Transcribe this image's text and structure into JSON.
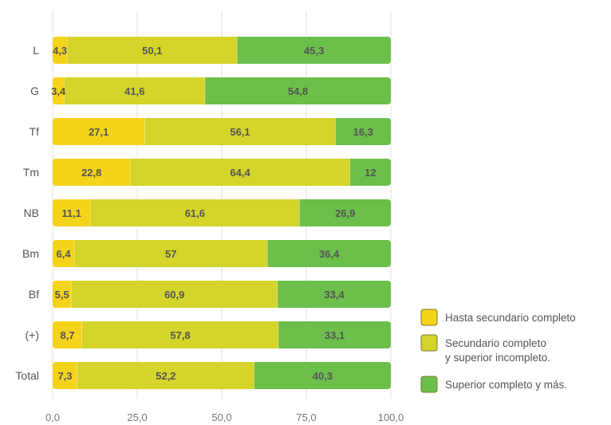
{
  "chart_data": {
    "type": "bar",
    "orientation": "horizontal",
    "stacked": true,
    "categories": [
      "L",
      "G",
      "Tf",
      "Tm",
      "NB",
      "Bm",
      "Bf",
      "(+)",
      "Total"
    ],
    "series": [
      {
        "name": "Hasta secundario completo",
        "color": "#f4d31b",
        "values": [
          4.3,
          3.4,
          27.1,
          22.8,
          11.1,
          6.4,
          5.5,
          8.7,
          7.3
        ],
        "labels": [
          "4,3",
          "3,4",
          "27,1",
          "22,8",
          "11,1",
          "6,4",
          "5,5",
          "8,7",
          "7,3"
        ]
      },
      {
        "name_lines": [
          "Secundario completo",
          "y superior incompleto."
        ],
        "color": "#d4d42a",
        "values": [
          50.1,
          41.6,
          56.1,
          64.4,
          61.6,
          57,
          60.9,
          57.8,
          52.2
        ],
        "labels": [
          "50,1",
          "41,6",
          "56,1",
          "64,4",
          "61,6",
          "57",
          "60,9",
          "57,8",
          "52,2"
        ]
      },
      {
        "name": "Superior completo y más.",
        "color": "#6cbf4b",
        "values": [
          45.3,
          54.8,
          16.3,
          12,
          26.9,
          36.4,
          33.4,
          33.1,
          40.3
        ],
        "labels": [
          "45,3",
          "54,8",
          "16,3",
          "12",
          "26,9",
          "36,4",
          "33,4",
          "33,1",
          "40,3"
        ]
      }
    ],
    "xlim": [
      0,
      100
    ],
    "xticks": [
      0,
      25,
      50,
      75,
      100
    ],
    "xtick_labels": [
      "0,0",
      "25,0",
      "50,0",
      "75,0",
      "100,0"
    ],
    "grid": true,
    "legend_position": "right"
  }
}
